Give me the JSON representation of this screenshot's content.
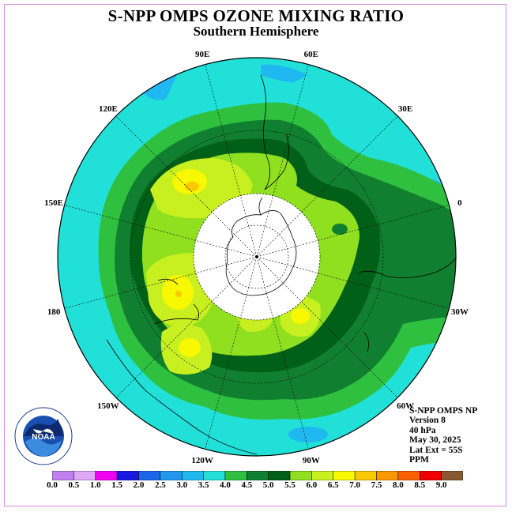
{
  "title": "S-NPP OMPS OZONE MIXING RATIO",
  "subtitle": "Southern Hemisphere",
  "lon_labels": [
    {
      "text": "90W",
      "lon": -90
    },
    {
      "text": "60W",
      "lon": -60
    },
    {
      "text": "30W",
      "lon": -30
    },
    {
      "text": "0",
      "lon": 0
    },
    {
      "text": "30E",
      "lon": 30
    },
    {
      "text": "60E",
      "lon": 60
    },
    {
      "text": "90E",
      "lon": 90
    },
    {
      "text": "120E",
      "lon": 120
    },
    {
      "text": "150E",
      "lon": 150
    },
    {
      "text": "180",
      "lon": 180
    },
    {
      "text": "150W",
      "lon": -150
    },
    {
      "text": "120W",
      "lon": -120
    }
  ],
  "info": {
    "instrument": "S-NPP OMPS NP",
    "version": "Version 8",
    "pressure": "40 hPa",
    "date": "May 30, 2025",
    "lat_ext": "Lat Ext = 55S",
    "units": "PPM"
  },
  "logo_text": "NOAA",
  "colorbar": {
    "labels": [
      "0.0",
      "0.5",
      "1.0",
      "1.5",
      "2.0",
      "2.5",
      "3.0",
      "3.5",
      "4.0",
      "4.5",
      "5.0",
      "5.5",
      "6.0",
      "6.5",
      "7.0",
      "7.5",
      "8.0",
      "8.5",
      "9.0"
    ],
    "colors": [
      "#c080f0",
      "#e0a8f8",
      "#f000f0",
      "#1818e0",
      "#1c64e8",
      "#2098f0",
      "#20b8f0",
      "#20e0d8",
      "#30c040",
      "#108030",
      "#006018",
      "#90e020",
      "#c8f020",
      "#f8f800",
      "#f8c800",
      "#f89800",
      "#f86000",
      "#f00000",
      "#885830"
    ]
  }
}
